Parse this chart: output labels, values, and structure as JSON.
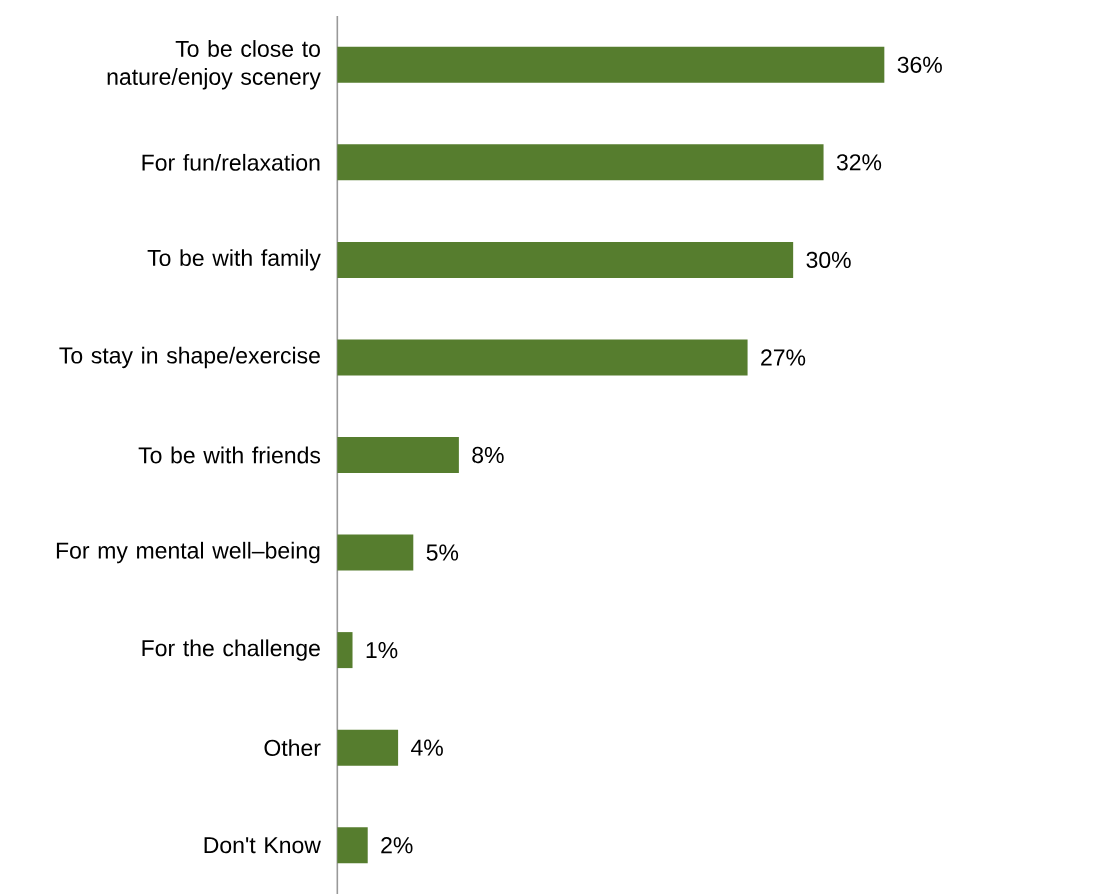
{
  "chart_data": {
    "type": "bar",
    "orientation": "horizontal",
    "categories": [
      "To be close to nature/enjoy scenery",
      "For fun/relaxation",
      "To be with family",
      "To stay in shape/exercise",
      "To be with friends",
      "For my mental well–being",
      "For the challenge",
      "Other",
      "Don't Know"
    ],
    "values": [
      36,
      32,
      30,
      27,
      8,
      5,
      1,
      4,
      2
    ],
    "value_labels": [
      "36%",
      "32%",
      "30%",
      "27%",
      "8%",
      "5%",
      "1%",
      "4%",
      "2%"
    ],
    "color": "#567d2e"
  }
}
